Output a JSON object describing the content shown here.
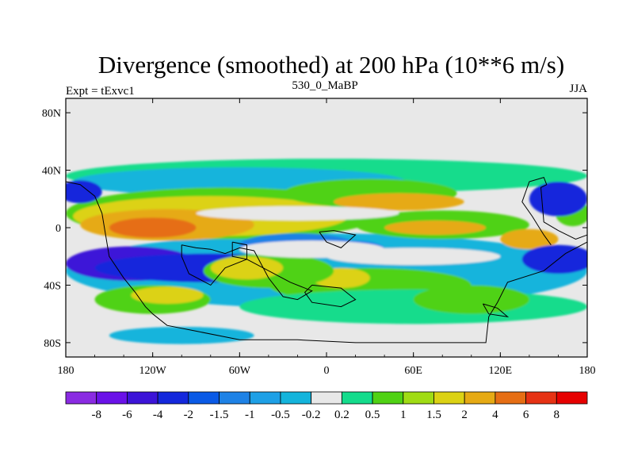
{
  "chart_data": {
    "type": "heatmap",
    "title": "Divergence (smoothed) at 200 hPa (10**6 m/s)",
    "subtitle_left": "Expt = tExvc1",
    "subtitle_center": "530_0_MaBP",
    "subtitle_right": "JJA",
    "x_ticks": [
      {
        "value": -180,
        "label": "180"
      },
      {
        "value": -120,
        "label": "120W"
      },
      {
        "value": -60,
        "label": "60W"
      },
      {
        "value": 0,
        "label": "0"
      },
      {
        "value": 60,
        "label": "60E"
      },
      {
        "value": 120,
        "label": "120E"
      },
      {
        "value": 180,
        "label": "180"
      }
    ],
    "y_ticks": [
      {
        "value": 80,
        "label": "80N"
      },
      {
        "value": 40,
        "label": "40N"
      },
      {
        "value": 0,
        "label": "0"
      },
      {
        "value": -40,
        "label": "40S"
      },
      {
        "value": -80,
        "label": "80S"
      }
    ],
    "xlim": [
      -180,
      180
    ],
    "ylim": [
      -90,
      90
    ],
    "colorbar": {
      "levels": [
        "-8",
        "-6",
        "-4",
        "-2",
        "-1.5",
        "-1",
        "-0.5",
        "-0.2",
        "0.2",
        "0.5",
        "1",
        "1.5",
        "2",
        "4",
        "6",
        "8"
      ],
      "colors": [
        "#8a2be2",
        "#6a12e8",
        "#3c14d8",
        "#1428dc",
        "#0a5ae6",
        "#1e82e6",
        "#1ea0e6",
        "#14b4dc",
        "#e8e8e8",
        "#14dc8c",
        "#50d214",
        "#a0dc14",
        "#dcd214",
        "#e6aa14",
        "#e66e14",
        "#e63214",
        "#e60000"
      ]
    },
    "field_colors": {
      "background": "#e8e8e8",
      "neg_light": "#14b4dc",
      "neg_mid": "#1e82e6",
      "neg_strong": "#1428dc",
      "neg_max": "#3c14d8",
      "pos_light": "#14dc8c",
      "pos_mid": "#50d214",
      "pos_yellow": "#dcd214",
      "pos_orange": "#e6aa14",
      "pos_strong": "#e66e14",
      "pos_max": "#e63214"
    },
    "field_blobs": [
      {
        "lon": 0,
        "lat": 36,
        "rlon": 180,
        "rlat": 12,
        "c": "pos_light"
      },
      {
        "lon": 0,
        "lat": -30,
        "rlon": 180,
        "rlat": 26,
        "c": "neg_light"
      },
      {
        "lon": -60,
        "lat": 32,
        "rlon": 115,
        "rlat": 10,
        "c": "neg_light"
      },
      {
        "lon": -70,
        "lat": 10,
        "rlon": 110,
        "rlat": 18,
        "c": "pos_mid"
      },
      {
        "lon": -80,
        "lat": 8,
        "rlon": 95,
        "rlat": 14,
        "c": "pos_yellow"
      },
      {
        "lon": -110,
        "lat": 2,
        "rlon": 60,
        "rlat": 11,
        "c": "pos_orange"
      },
      {
        "lon": -120,
        "lat": 0,
        "rlon": 30,
        "rlat": 7,
        "c": "pos_strong"
      },
      {
        "lon": 30,
        "lat": 24,
        "rlon": 60,
        "rlat": 10,
        "c": "pos_mid"
      },
      {
        "lon": 50,
        "lat": 18,
        "rlon": 45,
        "rlat": 6,
        "c": "pos_orange"
      },
      {
        "lon": 80,
        "lat": 2,
        "rlon": 60,
        "rlat": 10,
        "c": "pos_mid"
      },
      {
        "lon": 75,
        "lat": 0,
        "rlon": 35,
        "rlat": 5,
        "c": "pos_orange"
      },
      {
        "lon": 140,
        "lat": -8,
        "rlon": 20,
        "rlat": 7,
        "c": "pos_orange"
      },
      {
        "lon": 170,
        "lat": 10,
        "rlon": 12,
        "rlat": 9,
        "c": "pos_mid"
      },
      {
        "lon": -135,
        "lat": -25,
        "rlon": 45,
        "rlat": 12,
        "c": "neg_max"
      },
      {
        "lon": -80,
        "lat": -28,
        "rlon": 80,
        "rlat": 10,
        "c": "neg_strong"
      },
      {
        "lon": 160,
        "lat": 20,
        "rlon": 20,
        "rlat": 12,
        "c": "neg_strong"
      },
      {
        "lon": 160,
        "lat": -22,
        "rlon": 25,
        "rlat": 10,
        "c": "neg_strong"
      },
      {
        "lon": -170,
        "lat": 25,
        "rlon": 15,
        "rlat": 8,
        "c": "neg_strong"
      },
      {
        "lon": -20,
        "lat": -12,
        "rlon": 40,
        "rlat": 8,
        "c": "neg_mid"
      },
      {
        "lon": 20,
        "lat": -15,
        "rlon": 20,
        "rlat": 6,
        "c": "neg_mid"
      },
      {
        "lon": 30,
        "lat": -40,
        "rlon": 70,
        "rlat": 12,
        "c": "pos_mid"
      },
      {
        "lon": 10,
        "lat": -35,
        "rlon": 20,
        "rlat": 7,
        "c": "pos_yellow"
      },
      {
        "lon": -40,
        "lat": -30,
        "rlon": 45,
        "rlat": 12,
        "c": "pos_mid"
      },
      {
        "lon": -55,
        "lat": -28,
        "rlon": 25,
        "rlat": 8,
        "c": "pos_yellow"
      },
      {
        "lon": 60,
        "lat": -55,
        "rlon": 120,
        "rlat": 12,
        "c": "pos_light"
      },
      {
        "lon": 100,
        "lat": -50,
        "rlon": 40,
        "rlat": 10,
        "c": "pos_mid"
      },
      {
        "lon": -120,
        "lat": -50,
        "rlon": 40,
        "rlat": 10,
        "c": "pos_mid"
      },
      {
        "lon": -110,
        "lat": -47,
        "rlon": 25,
        "rlat": 6,
        "c": "pos_yellow"
      },
      {
        "lon": -100,
        "lat": -75,
        "rlon": 50,
        "rlat": 6,
        "c": "neg_light"
      },
      {
        "lon": -10,
        "lat": -15,
        "rlon": 50,
        "rlat": 6,
        "c": "background"
      },
      {
        "lon": 60,
        "lat": -20,
        "rlon": 60,
        "rlat": 6,
        "c": "background"
      },
      {
        "lon": -20,
        "lat": 10,
        "rlon": 70,
        "rlat": 5,
        "c": "background"
      }
    ],
    "land_outlines": [
      [
        [
          -180,
          32
        ],
        [
          -170,
          30
        ],
        [
          -160,
          22
        ],
        [
          -155,
          10
        ],
        [
          -150,
          -20
        ],
        [
          -140,
          -35
        ],
        [
          -132,
          -45
        ],
        [
          -125,
          -55
        ],
        [
          -120,
          -60
        ],
        [
          -110,
          -68
        ],
        [
          -90,
          -72
        ],
        [
          -60,
          -78
        ],
        [
          -20,
          -78
        ],
        [
          20,
          -80
        ],
        [
          110,
          -80
        ],
        [
          112,
          -62
        ],
        [
          118,
          -52
        ],
        [
          125,
          -38
        ],
        [
          150,
          -30
        ],
        [
          165,
          -18
        ],
        [
          180,
          -10
        ],
        [
          180,
          -5
        ],
        [
          172,
          -8
        ],
        [
          160,
          -2
        ],
        [
          150,
          4
        ],
        [
          148,
          28
        ],
        [
          152,
          30
        ],
        [
          150,
          35
        ],
        [
          140,
          32
        ],
        [
          135,
          18
        ],
        [
          142,
          8
        ],
        [
          150,
          -5
        ],
        [
          155,
          -12
        ]
      ],
      [
        [
          -100,
          -12
        ],
        [
          -90,
          -14
        ],
        [
          -80,
          -15
        ],
        [
          -70,
          -18
        ],
        [
          -60,
          -14
        ],
        [
          -50,
          -16
        ],
        [
          -40,
          -35
        ],
        [
          -30,
          -48
        ],
        [
          -20,
          -50
        ],
        [
          -10,
          -44
        ],
        [
          -25,
          -38
        ],
        [
          -40,
          -30
        ],
        [
          -55,
          -22
        ],
        [
          -70,
          -28
        ],
        [
          -80,
          -40
        ],
        [
          -95,
          -32
        ],
        [
          -100,
          -20
        ],
        [
          -100,
          -12
        ]
      ],
      [
        [
          -10,
          -40
        ],
        [
          10,
          -42
        ],
        [
          20,
          -50
        ],
        [
          10,
          -55
        ],
        [
          -10,
          -52
        ],
        [
          -15,
          -45
        ],
        [
          -10,
          -40
        ]
      ],
      [
        [
          -5,
          -3
        ],
        [
          5,
          -2
        ],
        [
          20,
          -5
        ],
        [
          10,
          -14
        ],
        [
          0,
          -10
        ],
        [
          -5,
          -3
        ]
      ],
      [
        [
          -65,
          -10
        ],
        [
          -55,
          -12
        ],
        [
          -55,
          -22
        ],
        [
          -65,
          -20
        ],
        [
          -65,
          -10
        ]
      ],
      [
        [
          108,
          -53
        ],
        [
          118,
          -56
        ],
        [
          125,
          -62
        ],
        [
          112,
          -60
        ],
        [
          108,
          -53
        ]
      ]
    ]
  }
}
